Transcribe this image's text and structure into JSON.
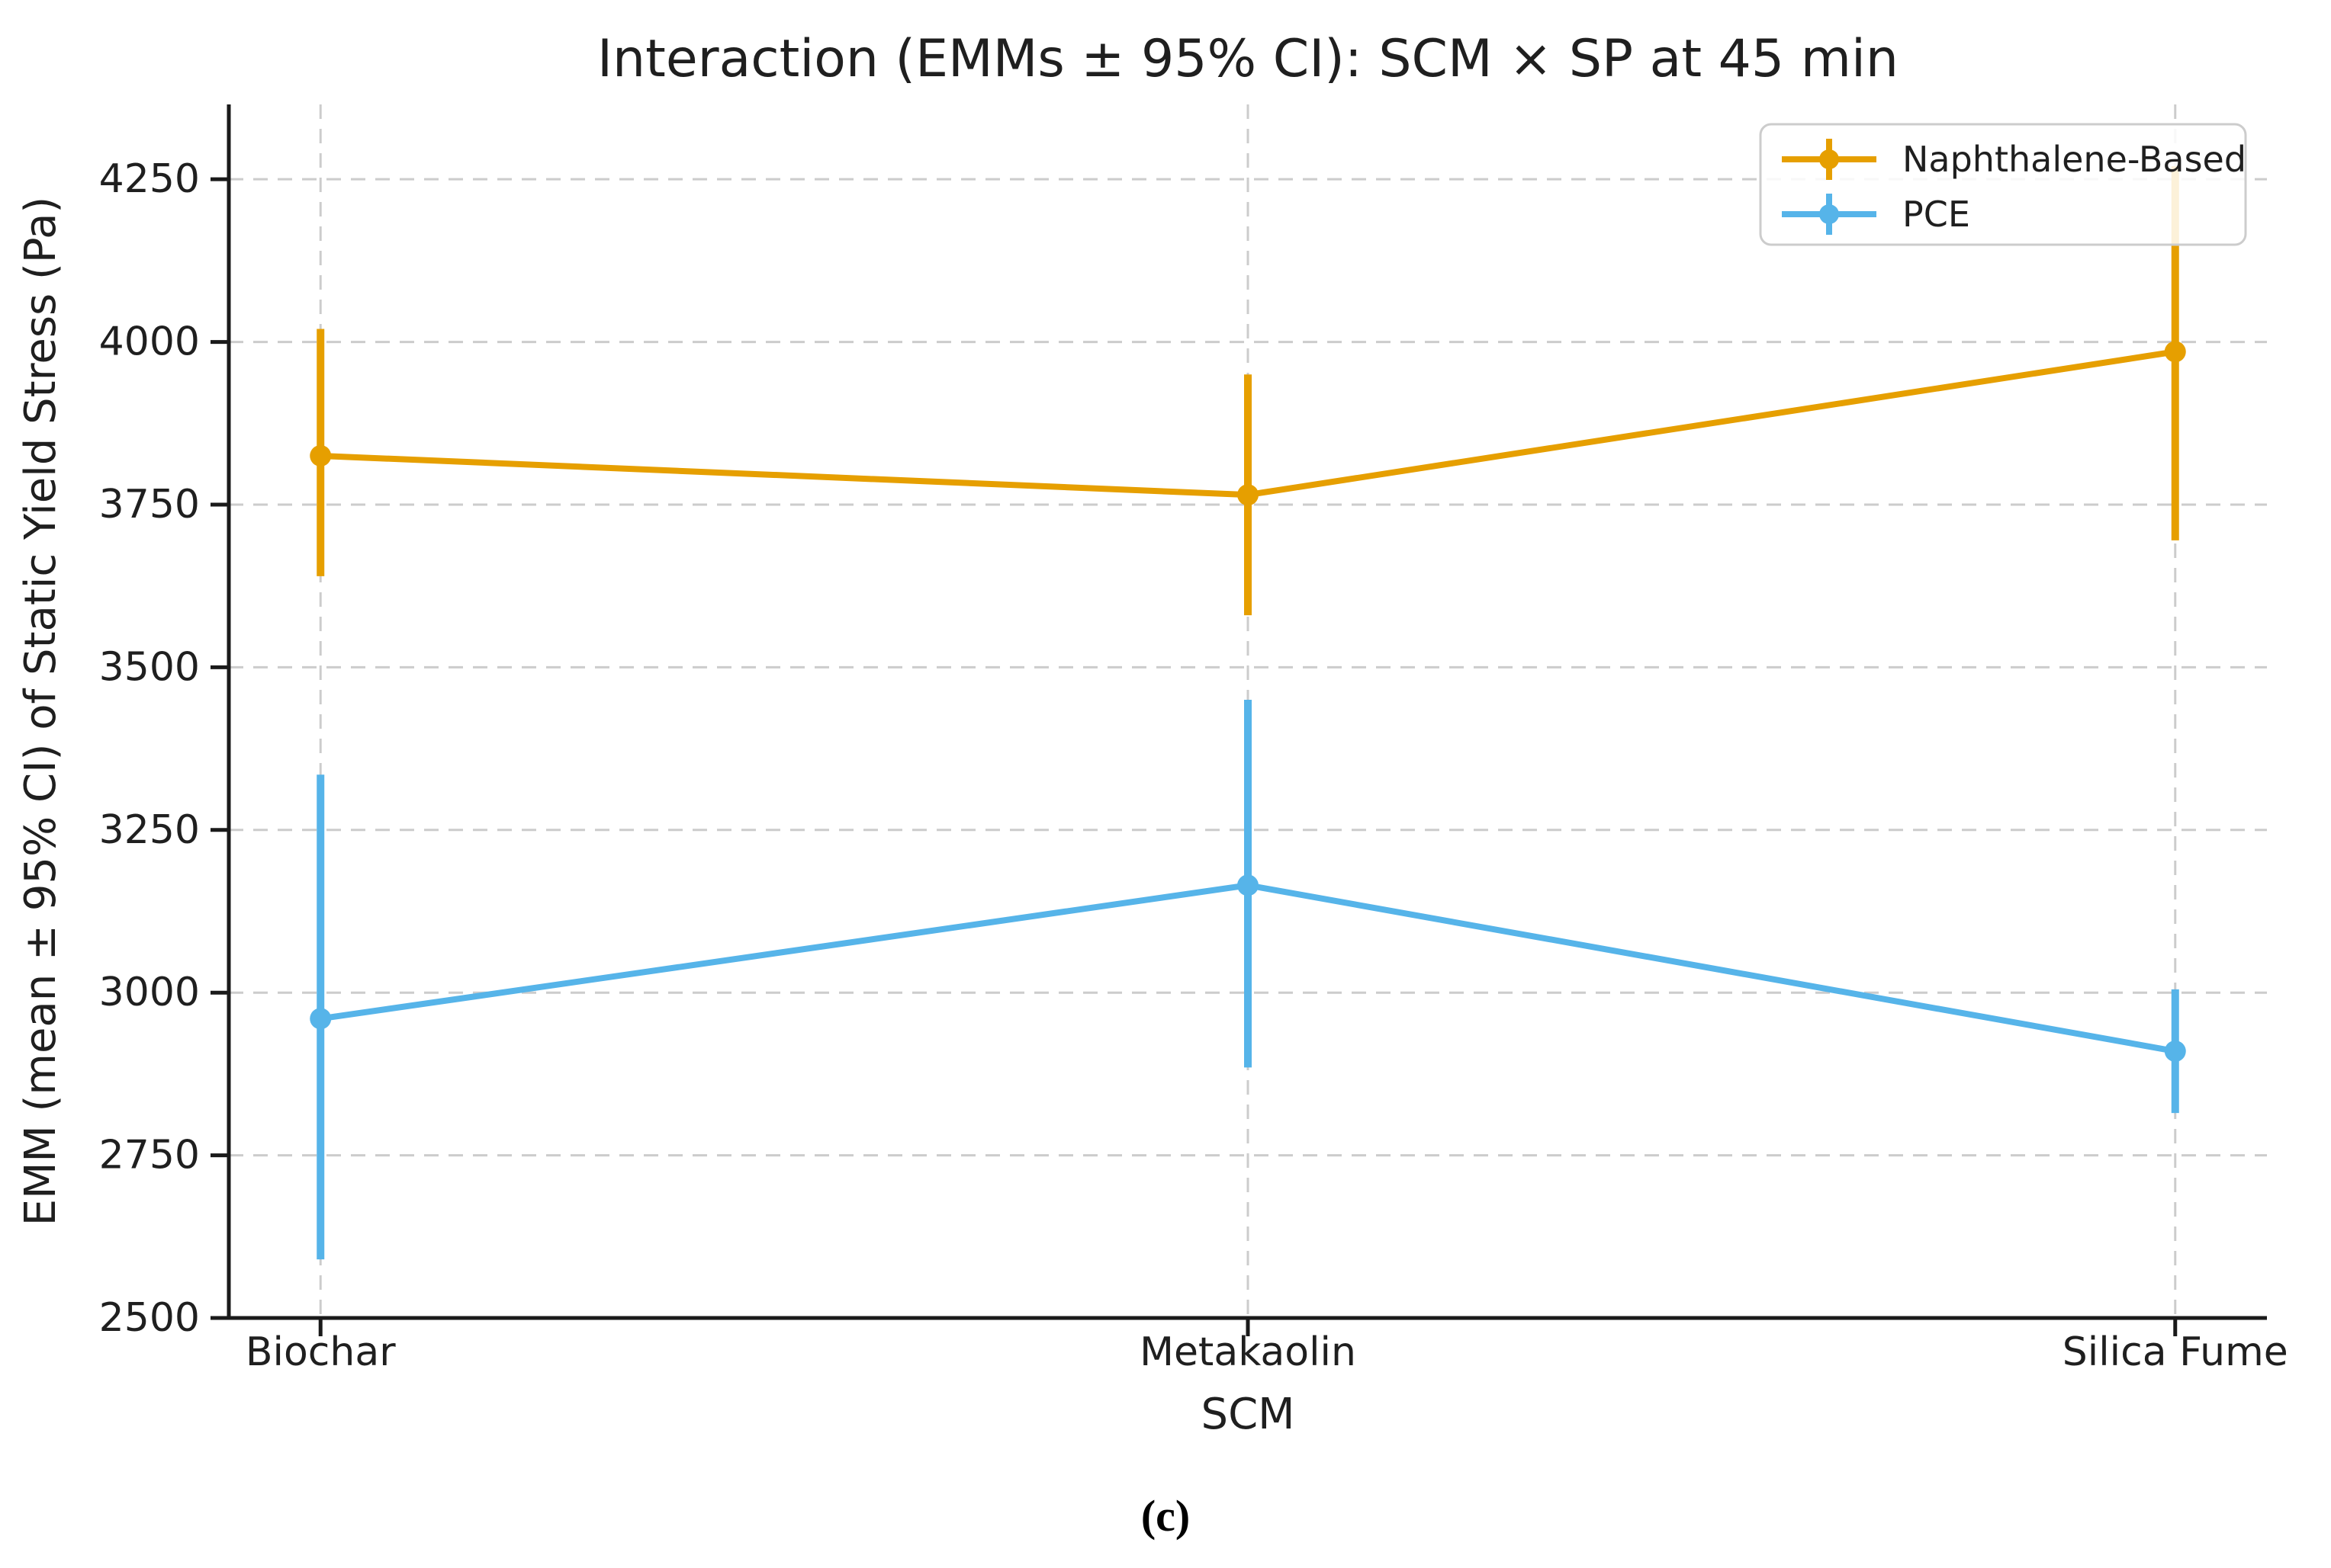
{
  "figure": {
    "caption": "(c)",
    "background": "#ffffff"
  },
  "chart_data": {
    "type": "line",
    "title": "Interaction (EMMs ± 95% CI): SCM × SP at 45 min",
    "xlabel": "SCM",
    "ylabel": "EMM (mean ± 95% CI) of Static Yield Stress (Pa)",
    "categories": [
      "Biochar",
      "Metakaolin",
      "Silica Fume"
    ],
    "series": [
      {
        "name": "Naphthalene-Based",
        "color": "#E69F00",
        "means": [
          3825,
          3765,
          3985
        ],
        "ci_low": [
          3640,
          3580,
          3695
        ],
        "ci_high": [
          4020,
          3950,
          4270
        ]
      },
      {
        "name": "PCE",
        "color": "#56B4E9",
        "means": [
          2960,
          3165,
          2910
        ],
        "ci_low": [
          2590,
          2885,
          2815
        ],
        "ci_high": [
          3335,
          3450,
          3005
        ]
      }
    ],
    "ylim": [
      2500,
      4365
    ],
    "yticks": [
      2500,
      2750,
      3000,
      3250,
      3500,
      3750,
      4000,
      4250
    ],
    "grid": true,
    "grid_color": "#cccccc",
    "axis_color": "#1a1a1a",
    "text_color": "#1f1f1f",
    "legend_position": "upper right",
    "marker": "circle",
    "error_bars": "95% CI vertical lines, no caps"
  }
}
